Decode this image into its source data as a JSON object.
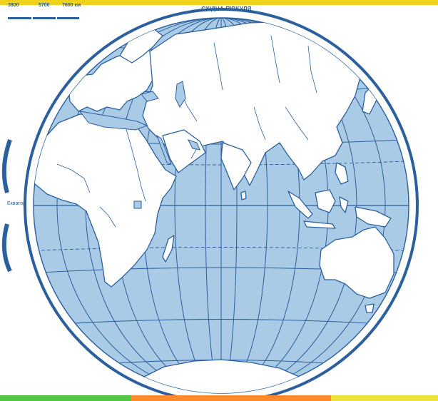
{
  "map": {
    "title": "СХІДНА ПІВКУЛЯ",
    "scale_labels": [
      "3800",
      "5700",
      "7600 км"
    ],
    "equator_label": "Екватор"
  },
  "colors": {
    "ocean": "#a9cbe6",
    "land": "#ffffff",
    "grid": "#2b5f9e",
    "coast": "#2b5f9e",
    "top_band": "#f1d21a",
    "bottom_band": [
      "#53c540",
      "#ff8a2a",
      "#efe23d"
    ]
  }
}
